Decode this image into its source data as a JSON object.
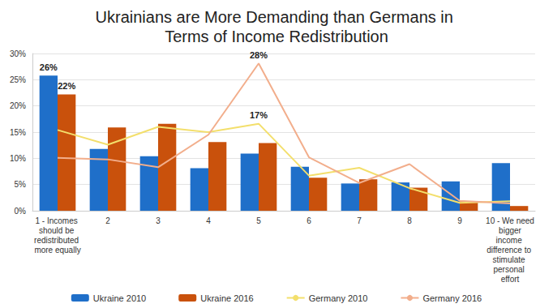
{
  "chart_data": {
    "type": "bar",
    "title": "Ukrainians are More Demanding than Germans in Terms of Income Redistribution",
    "categories": [
      "1 - Incomes should be redistributed more equally",
      "2",
      "3",
      "4",
      "5",
      "6",
      "7",
      "8",
      "9",
      "10 - We need bigger income difference to stimulate personal effort"
    ],
    "series": [
      {
        "name": "Ukraine 2010",
        "type": "bar",
        "color": "#1f6fc9",
        "values": [
          25.8,
          11.8,
          10.4,
          8.1,
          10.9,
          8.4,
          5.2,
          5.4,
          5.6,
          9.1
        ],
        "value_labels": [
          "26%",
          null,
          null,
          null,
          null,
          null,
          null,
          null,
          null,
          null
        ]
      },
      {
        "name": "Ukraine 2016",
        "type": "bar",
        "color": "#c9510c",
        "values": [
          22.2,
          15.9,
          16.6,
          13.1,
          12.9,
          6.3,
          6.0,
          4.4,
          1.8,
          0.9
        ],
        "value_labels": [
          "22%",
          null,
          null,
          null,
          null,
          null,
          null,
          null,
          null,
          null
        ]
      },
      {
        "name": "Germany 2010",
        "type": "line",
        "color": "#f3df6c",
        "values": [
          15.4,
          12.6,
          16.0,
          15.0,
          16.6,
          6.7,
          8.2,
          4.3,
          1.5,
          1.8
        ],
        "value_labels": [
          null,
          null,
          null,
          null,
          "17%",
          null,
          null,
          null,
          null,
          null
        ]
      },
      {
        "name": "Germany 2016",
        "type": "line",
        "color": "#f2ae8c",
        "values": [
          10.1,
          9.8,
          8.3,
          14.5,
          28.1,
          10.2,
          5.3,
          8.9,
          1.9,
          1.4
        ],
        "value_labels": [
          null,
          null,
          null,
          null,
          "28%",
          null,
          null,
          null,
          null,
          null
        ]
      }
    ],
    "ylim": [
      0,
      30
    ],
    "yticks": [
      {
        "value": 0,
        "label": "0%"
      },
      {
        "value": 5,
        "label": "5%"
      },
      {
        "value": 10,
        "label": "10%"
      },
      {
        "value": 15,
        "label": "15%"
      },
      {
        "value": 20,
        "label": "20%"
      },
      {
        "value": 25,
        "label": "25%"
      },
      {
        "value": 30,
        "label": "30%"
      }
    ],
    "grid": true,
    "legend": "bottom",
    "data_labels": true
  }
}
